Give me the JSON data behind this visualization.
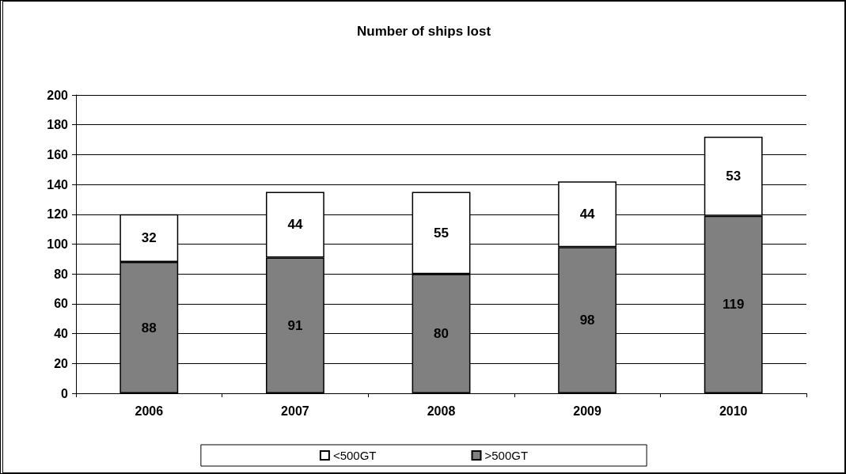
{
  "chart_data": {
    "type": "bar",
    "title": "Number of ships lost",
    "categories": [
      "2006",
      "2007",
      "2008",
      "2009",
      "2010"
    ],
    "series": [
      {
        "name": ">500GT",
        "color": "#808080",
        "values": [
          88,
          91,
          80,
          98,
          119
        ]
      },
      {
        "name": "<500GT",
        "color": "#ffffff",
        "values": [
          32,
          44,
          55,
          44,
          53
        ]
      }
    ],
    "stacked": true,
    "data_labels": true,
    "ylim": [
      0,
      200
    ],
    "yticks": [
      0,
      20,
      40,
      60,
      80,
      100,
      120,
      140,
      160,
      180,
      200
    ],
    "grid": "y",
    "legend": "bottom"
  }
}
